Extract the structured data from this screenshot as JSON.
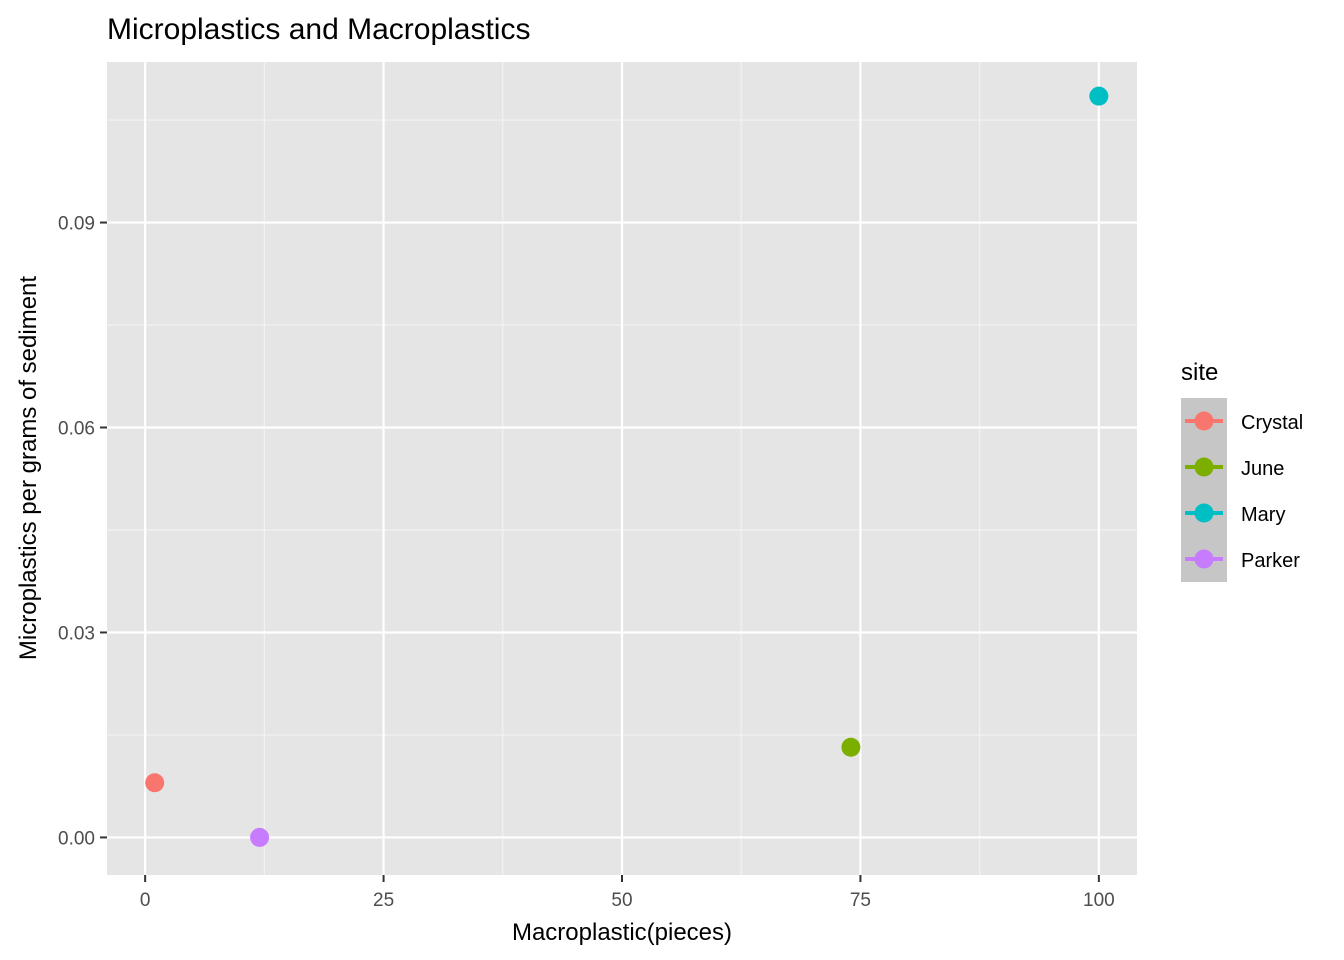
{
  "chart_data": {
    "type": "scatter",
    "title": "Microplastics and Macroplastics",
    "xlabel": "Macroplastic(pieces)",
    "ylabel": "Microplastics per grams of sediment",
    "xlim": [
      -4,
      104
    ],
    "ylim": [
      -0.0055,
      0.1135
    ],
    "x_ticks": [
      0,
      25,
      50,
      75,
      100
    ],
    "x_tick_labels": [
      "0",
      "25",
      "50",
      "75",
      "100"
    ],
    "y_ticks": [
      0,
      0.03,
      0.06,
      0.09
    ],
    "y_tick_labels": [
      "0.00",
      "0.03",
      "0.06",
      "0.09"
    ],
    "grid": true,
    "legend": {
      "title": "site",
      "position": "right"
    },
    "series": [
      {
        "name": "Crystal",
        "color": "#F8766D",
        "x": [
          1
        ],
        "y": [
          0.008
        ]
      },
      {
        "name": "June",
        "color": "#7CAE00",
        "x": [
          74
        ],
        "y": [
          0.0132
        ]
      },
      {
        "name": "Mary",
        "color": "#00BFC4",
        "x": [
          100
        ],
        "y": [
          0.1085
        ]
      },
      {
        "name": "Parker",
        "color": "#C77CFF",
        "x": [
          12
        ],
        "y": [
          0.0
        ]
      }
    ]
  }
}
